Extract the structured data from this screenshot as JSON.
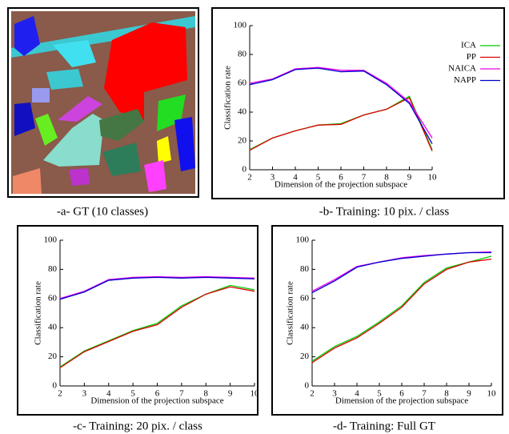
{
  "image_caption": "-a- GT (10 classes)",
  "chart_data": [
    {
      "type": "line",
      "caption": "-b- Training: 10 pix. / class",
      "xlabel": "Dimension of the projection subspace",
      "ylabel": "Classification rate",
      "x": [
        2,
        3,
        4,
        5,
        6,
        7,
        8,
        9,
        10
      ],
      "xlim": [
        2,
        10
      ],
      "ylim": [
        0,
        100
      ],
      "xticks": [
        2,
        3,
        4,
        5,
        6,
        7,
        8,
        9,
        10
      ],
      "yticks": [
        0,
        20,
        40,
        60,
        80,
        100
      ],
      "legend": "right",
      "series": [
        {
          "name": "ICA",
          "color": "#00cc00",
          "values": [
            14,
            22,
            27,
            31,
            32,
            38,
            42,
            51,
            14
          ]
        },
        {
          "name": "PP",
          "color": "#dd0000",
          "values": [
            13.5,
            22,
            27,
            31,
            31.5,
            38,
            42,
            50,
            13
          ]
        },
        {
          "name": "NAICA",
          "color": "#ee00ee",
          "values": [
            60,
            63,
            70,
            71,
            69,
            69,
            60,
            47,
            22
          ]
        },
        {
          "name": "NAPP",
          "color": "#0000cc",
          "values": [
            59,
            62.5,
            69.5,
            70.5,
            68,
            68.5,
            59,
            46,
            18
          ]
        }
      ]
    },
    {
      "type": "line",
      "caption": "-c- Training: 20 pix. / class",
      "xlabel": "Dimension of the projection subspace",
      "ylabel": "Classification rate",
      "x": [
        2,
        3,
        4,
        5,
        6,
        7,
        8,
        9,
        10
      ],
      "xlim": [
        2,
        10
      ],
      "ylim": [
        0,
        100
      ],
      "xticks": [
        2,
        3,
        4,
        5,
        6,
        7,
        8,
        9,
        10
      ],
      "yticks": [
        0,
        20,
        40,
        60,
        80,
        100
      ],
      "series": [
        {
          "color": "#00cc00",
          "values": [
            13,
            24,
            31,
            38,
            43,
            55,
            63,
            69,
            66
          ]
        },
        {
          "color": "#dd0000",
          "values": [
            12.5,
            23.5,
            30.5,
            37.5,
            42,
            54,
            63,
            68,
            65
          ]
        },
        {
          "color": "#ee00ee",
          "values": [
            60,
            65,
            73,
            74.5,
            75,
            74.5,
            75,
            74.5,
            74
          ]
        },
        {
          "color": "#0000cc",
          "values": [
            59.5,
            64.5,
            72.5,
            74,
            74.5,
            74,
            74.5,
            74,
            73.5
          ]
        }
      ]
    },
    {
      "type": "line",
      "caption": "-d- Training: Full GT",
      "xlabel": "Dimension of the projection subspace",
      "ylabel": "Classification rate",
      "x": [
        2,
        3,
        4,
        5,
        6,
        7,
        8,
        9,
        10
      ],
      "xlim": [
        2,
        10
      ],
      "ylim": [
        0,
        100
      ],
      "xticks": [
        2,
        3,
        4,
        5,
        6,
        7,
        8,
        9,
        10
      ],
      "yticks": [
        0,
        20,
        40,
        60,
        80,
        100
      ],
      "series": [
        {
          "color": "#00cc00",
          "values": [
            17,
            27,
            34,
            44,
            55,
            71,
            81,
            85,
            89
          ]
        },
        {
          "color": "#dd0000",
          "values": [
            16,
            26,
            33,
            43,
            54,
            70,
            80,
            85,
            87
          ]
        },
        {
          "color": "#ee00ee",
          "values": [
            65,
            73,
            82,
            85,
            88,
            89.5,
            90.5,
            91.5,
            92
          ]
        },
        {
          "color": "#0000cc",
          "values": [
            64,
            72,
            81.5,
            85,
            87.5,
            89,
            90.5,
            91.5,
            91.5
          ]
        }
      ]
    }
  ]
}
